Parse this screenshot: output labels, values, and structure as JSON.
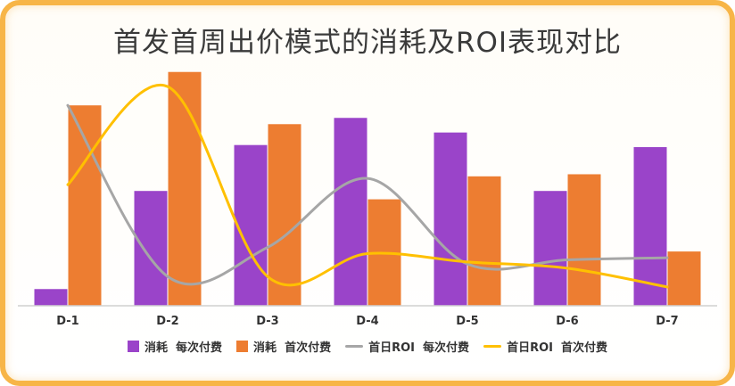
{
  "chart_data": {
    "type": "bar",
    "title": "首发首周出价模式的消耗及ROI表现对比",
    "categories": [
      "D-1",
      "D-2",
      "D-3",
      "D-4",
      "D-5",
      "D-6",
      "D-7"
    ],
    "series": [
      {
        "name": "消耗  每次付费",
        "kind": "bar",
        "color": "#9a44c9",
        "values": [
          0.08,
          0.55,
          0.77,
          0.9,
          0.83,
          0.55,
          0.76
        ]
      },
      {
        "name": "消耗  首次付费",
        "kind": "bar",
        "color": "#ed7d31",
        "values": [
          0.96,
          1.12,
          0.87,
          0.51,
          0.62,
          0.63,
          0.26
        ]
      },
      {
        "name": "首日ROI  每次付费",
        "kind": "line",
        "color": "#a6a6a6",
        "values": [
          0.96,
          0.14,
          0.28,
          0.61,
          0.2,
          0.22,
          0.23
        ]
      },
      {
        "name": "首日ROI  首次付费",
        "kind": "line",
        "color": "#ffc000",
        "values": [
          0.58,
          1.05,
          0.14,
          0.25,
          0.21,
          0.18,
          0.09
        ]
      }
    ],
    "ylim": [
      0,
      1.2
    ],
    "grid": false,
    "legend_position": "bottom"
  }
}
